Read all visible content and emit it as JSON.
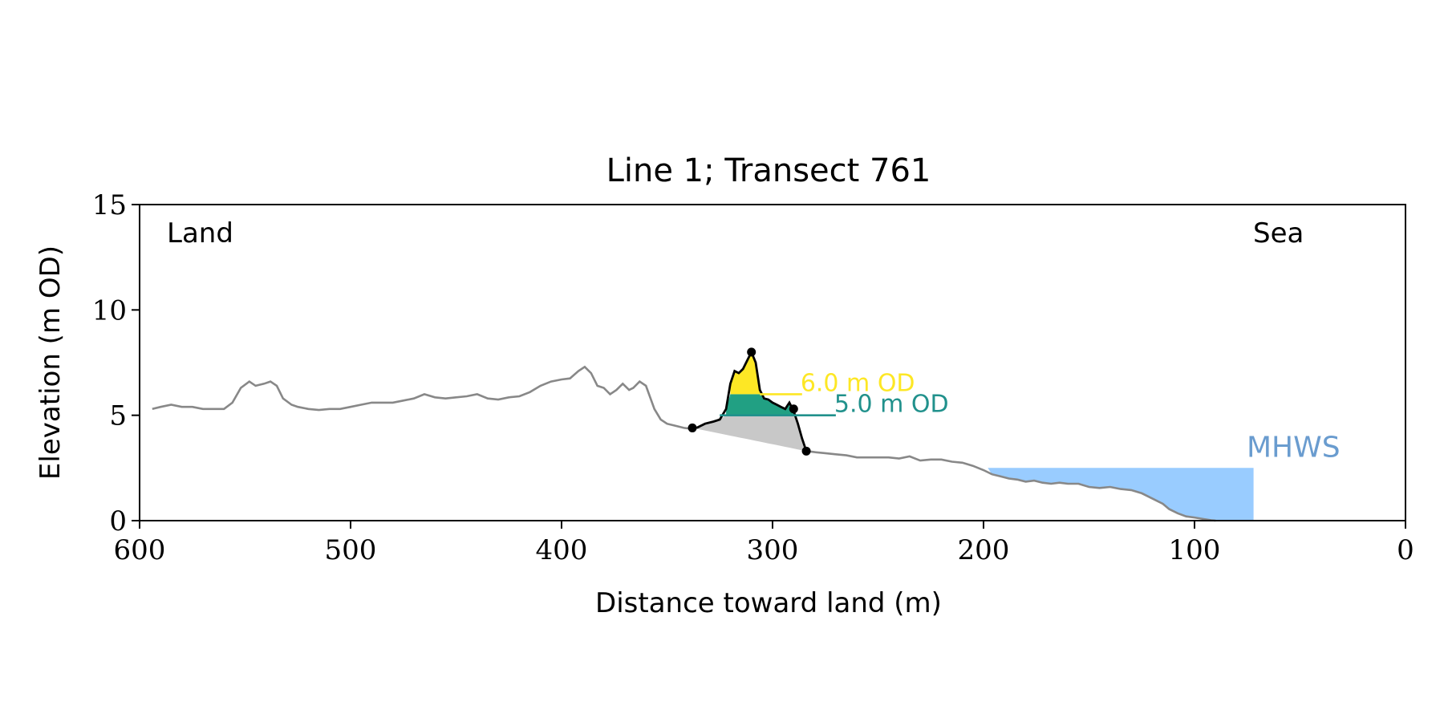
{
  "chart_data": {
    "type": "line",
    "title": "Line 1; Transect 761",
    "xlabel": "Distance toward land (m)",
    "ylabel": "Elevation (m OD)",
    "xlim": [
      600,
      0
    ],
    "ylim": [
      0,
      15
    ],
    "x_ticks": [
      600,
      500,
      400,
      300,
      200,
      100,
      0
    ],
    "y_ticks": [
      0,
      5,
      10,
      15
    ],
    "grid": false,
    "annotations": {
      "land": "Land",
      "sea": "Sea",
      "mhws": "MHWS"
    },
    "colors": {
      "profile": "#888888",
      "dune": "#000000",
      "level_6": "#fde725",
      "level_5": "#21a083",
      "level_5_line": "#21918c",
      "base_fill": "#c8c8c8",
      "mhws_fill": "#99ccff",
      "mhws_text": "#6a9ccf"
    },
    "profile": {
      "x": [
        594,
        590,
        585,
        580,
        575,
        570,
        565,
        560,
        556,
        552,
        548,
        545,
        541,
        538,
        535,
        532,
        528,
        525,
        520,
        515,
        510,
        505,
        500,
        495,
        490,
        485,
        480,
        475,
        470,
        465,
        460,
        455,
        450,
        445,
        440,
        435,
        430,
        425,
        420,
        415,
        410,
        405,
        400,
        396,
        392,
        389,
        386,
        383,
        380,
        377,
        374,
        371,
        368,
        366,
        363,
        360,
        356,
        353,
        350,
        346,
        342,
        338,
        336
      ],
      "y": [
        5.3,
        5.4,
        5.5,
        5.4,
        5.4,
        5.3,
        5.3,
        5.3,
        5.6,
        6.3,
        6.6,
        6.4,
        6.5,
        6.6,
        6.4,
        5.8,
        5.5,
        5.4,
        5.3,
        5.25,
        5.3,
        5.3,
        5.4,
        5.5,
        5.6,
        5.6,
        5.6,
        5.7,
        5.8,
        6.0,
        5.85,
        5.8,
        5.85,
        5.9,
        6.0,
        5.8,
        5.75,
        5.85,
        5.9,
        6.1,
        6.4,
        6.6,
        6.7,
        6.75,
        7.1,
        7.3,
        7.0,
        6.4,
        6.3,
        6.0,
        6.2,
        6.5,
        6.2,
        6.3,
        6.6,
        6.4,
        5.3,
        4.8,
        4.6,
        4.5,
        4.4,
        4.35,
        4.4
      ]
    },
    "dune": {
      "x": [
        336,
        332,
        328,
        325,
        322,
        320,
        318,
        316,
        314,
        312,
        310,
        308,
        306,
        304,
        302,
        300,
        298,
        296,
        294,
        292,
        290,
        288,
        286,
        284
      ],
      "y": [
        4.4,
        4.6,
        4.7,
        4.8,
        5.3,
        6.5,
        7.1,
        7.0,
        7.2,
        7.6,
        8.0,
        7.5,
        6.2,
        5.8,
        5.75,
        5.6,
        5.5,
        5.4,
        5.3,
        5.6,
        5.2,
        4.6,
        3.9,
        3.3
      ]
    },
    "dune_markers": {
      "x": [
        338,
        310,
        290,
        284
      ],
      "y": [
        4.4,
        8.0,
        5.3,
        3.3
      ]
    },
    "seaward_profile": {
      "x": [
        284,
        280,
        275,
        270,
        265,
        260,
        255,
        250,
        245,
        240,
        235,
        230,
        225,
        220,
        215,
        210,
        205,
        200,
        196,
        192,
        188,
        184,
        180,
        176,
        172,
        168,
        164,
        160,
        155,
        150,
        145,
        140,
        135,
        130,
        125,
        120,
        115,
        112,
        108,
        104,
        100,
        96,
        92,
        90
      ],
      "y": [
        3.3,
        3.25,
        3.2,
        3.15,
        3.1,
        3.0,
        3.0,
        3.0,
        3.0,
        2.95,
        3.05,
        2.85,
        2.9,
        2.9,
        2.8,
        2.75,
        2.6,
        2.4,
        2.2,
        2.1,
        2.0,
        1.95,
        1.85,
        1.9,
        1.8,
        1.75,
        1.8,
        1.75,
        1.75,
        1.6,
        1.55,
        1.6,
        1.5,
        1.45,
        1.3,
        1.05,
        0.8,
        0.55,
        0.35,
        0.2,
        0.15,
        0.08,
        0.02,
        0.0
      ]
    },
    "levels": [
      {
        "label": "6.0 m OD",
        "elevation": 6.0,
        "x_from": 306,
        "x_to": 286
      },
      {
        "label": "5.0 m OD",
        "elevation": 5.0,
        "x_from": 325,
        "x_to": 270
      }
    ],
    "mhws": {
      "elevation": 2.5,
      "x_from": 198,
      "x_to": 72
    }
  }
}
